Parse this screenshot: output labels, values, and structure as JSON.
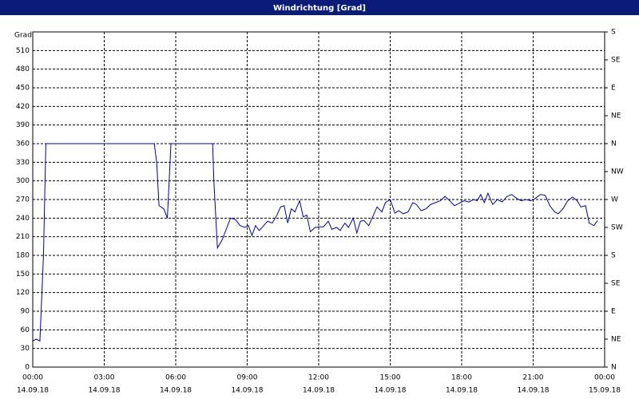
{
  "chart_data": {
    "type": "line",
    "title": "Windrichtung [Grad]",
    "ylabel": "Grad",
    "xlim": [
      0,
      24
    ],
    "xticks": [
      {
        "value": 0,
        "label": "00:00"
      },
      {
        "value": 3,
        "label": "03:00"
      },
      {
        "value": 6,
        "label": "06:00"
      },
      {
        "value": 9,
        "label": "09:00"
      },
      {
        "value": 12,
        "label": "12:00"
      },
      {
        "value": 15,
        "label": "15:00"
      },
      {
        "value": 18,
        "label": "18:00"
      },
      {
        "value": 21,
        "label": "21:00"
      },
      {
        "value": 24,
        "label": "00:00"
      }
    ],
    "xtick_dates": [
      "14.09.18",
      "14.09.18",
      "14.09.18",
      "14.09.18",
      "14.09.18",
      "14.09.18",
      "14.09.18",
      "14.09.18",
      "15.09.18"
    ],
    "ylim": [
      0,
      540
    ],
    "yticks": [
      0,
      30,
      60,
      90,
      120,
      150,
      180,
      210,
      240,
      270,
      300,
      330,
      360,
      390,
      420,
      450,
      480,
      510
    ],
    "y2lim": [
      0,
      540
    ],
    "y2ticks": [
      {
        "value": 0,
        "label": "N"
      },
      {
        "value": 45,
        "label": "NE"
      },
      {
        "value": 90,
        "label": "E"
      },
      {
        "value": 135,
        "label": "SE"
      },
      {
        "value": 180,
        "label": "S"
      },
      {
        "value": 225,
        "label": "SW"
      },
      {
        "value": 270,
        "label": "W"
      },
      {
        "value": 315,
        "label": "NW"
      },
      {
        "value": 360,
        "label": "N"
      },
      {
        "value": 405,
        "label": "NE"
      },
      {
        "value": 450,
        "label": "E"
      },
      {
        "value": 495,
        "label": "SE"
      },
      {
        "value": 540,
        "label": "S"
      }
    ],
    "grid": true,
    "x": [
      0,
      0.15,
      0.3,
      0.45,
      0.55,
      5.1,
      5.2,
      5.3,
      5.5,
      5.65,
      5.8,
      7.55,
      7.6,
      7.75,
      7.95,
      8.15,
      8.3,
      8.5,
      8.7,
      8.9,
      9.05,
      9.2,
      9.35,
      9.5,
      9.65,
      9.85,
      10.05,
      10.25,
      10.4,
      10.55,
      10.7,
      10.85,
      11.0,
      11.2,
      11.35,
      11.5,
      11.65,
      11.85,
      12.05,
      12.2,
      12.4,
      12.55,
      12.75,
      12.9,
      13.1,
      13.25,
      13.45,
      13.6,
      13.75,
      13.9,
      14.1,
      14.3,
      14.45,
      14.65,
      14.8,
      15.0,
      15.2,
      15.35,
      15.55,
      15.75,
      15.95,
      16.1,
      16.3,
      16.5,
      16.7,
      16.9,
      17.1,
      17.3,
      17.5,
      17.7,
      17.9,
      18.1,
      18.3,
      18.5,
      18.65,
      18.8,
      18.95,
      19.1,
      19.3,
      19.5,
      19.7,
      19.9,
      20.1,
      20.3,
      20.5,
      20.7,
      20.9,
      21.1,
      21.3,
      21.5,
      21.7,
      21.9,
      22.05,
      22.25,
      22.45,
      22.65,
      22.85,
      23.0,
      23.2,
      23.35,
      23.55,
      23.7
    ],
    "series": [
      {
        "name": "Windrichtung",
        "color": "#0000a0",
        "values": [
          42,
          45,
          42,
          180,
          360,
          360,
          330,
          260,
          255,
          240,
          360,
          360,
          300,
          192,
          205,
          225,
          240,
          238,
          228,
          225,
          228,
          212,
          228,
          220,
          226,
          235,
          232,
          245,
          258,
          260,
          232,
          255,
          250,
          268,
          242,
          245,
          218,
          225,
          226,
          226,
          235,
          222,
          225,
          220,
          232,
          225,
          240,
          216,
          235,
          236,
          228,
          245,
          258,
          250,
          265,
          270,
          248,
          252,
          247,
          250,
          265,
          262,
          252,
          255,
          262,
          265,
          268,
          275,
          268,
          260,
          264,
          268,
          266,
          270,
          268,
          278,
          265,
          280,
          262,
          270,
          266,
          275,
          278,
          272,
          268,
          270,
          268,
          272,
          278,
          277,
          260,
          250,
          247,
          255,
          268,
          274,
          268,
          258,
          260,
          232,
          228,
          236
        ]
      }
    ]
  }
}
